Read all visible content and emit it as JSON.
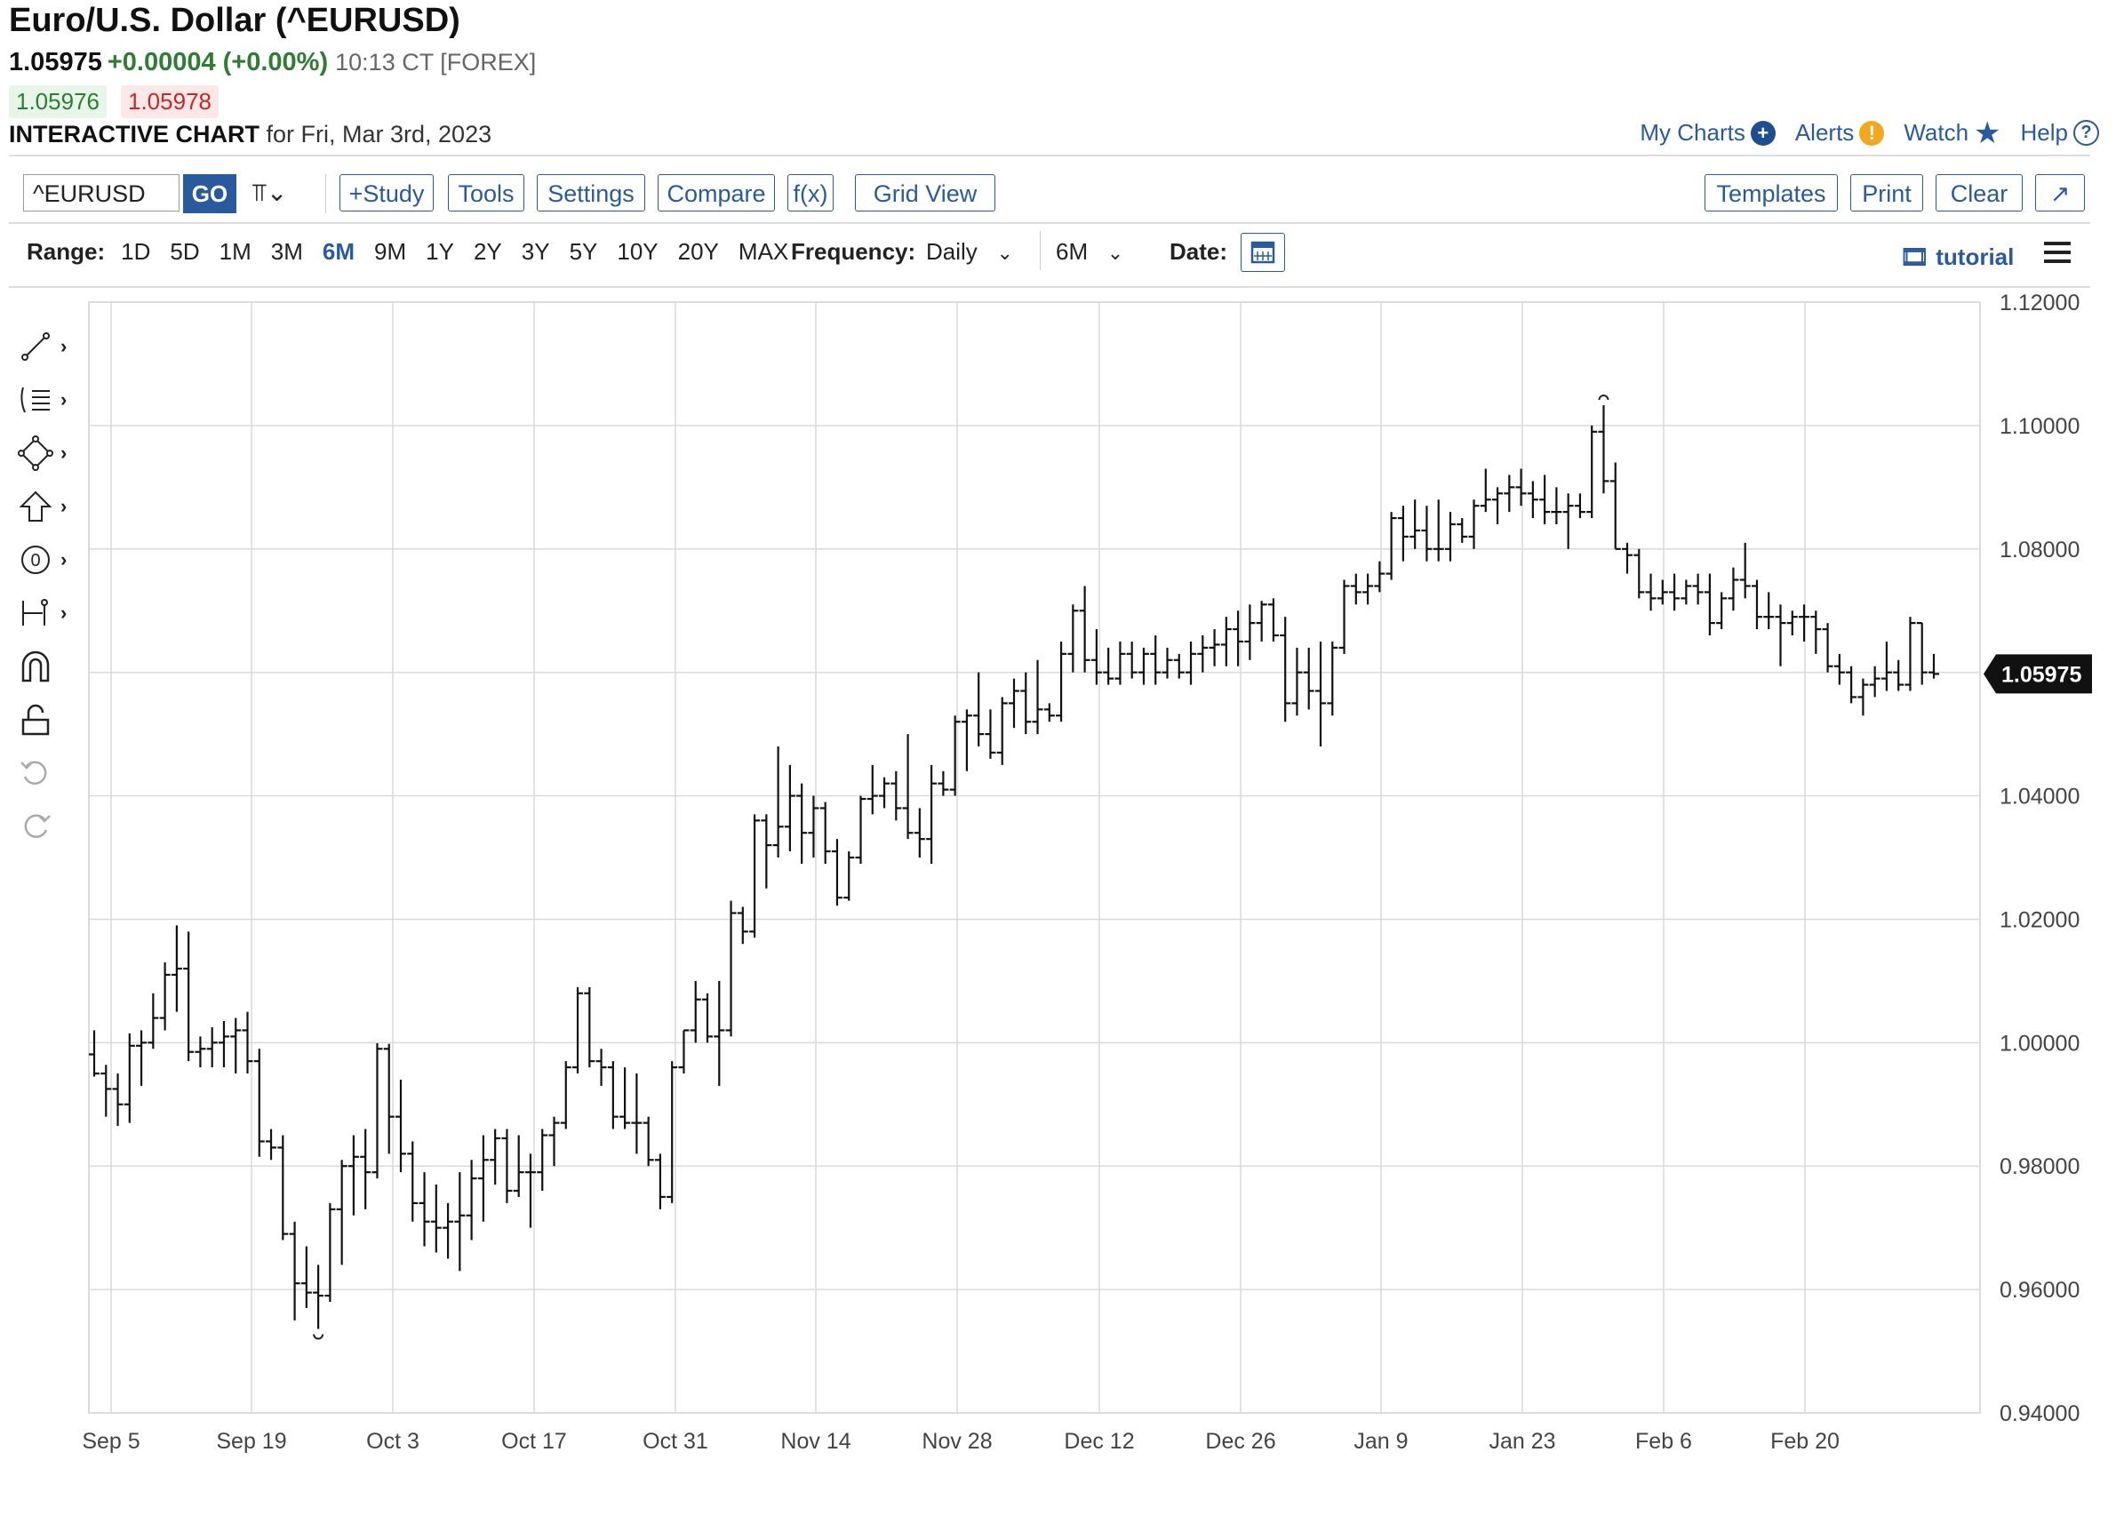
{
  "header": {
    "title": "Euro/U.S. Dollar (^EURUSD)",
    "last": "1.05975",
    "change": "+0.00004 (+0.00%)",
    "time": "10:13 CT [FOREX]",
    "bid": "1.05976",
    "ask": "1.05978",
    "chart_label": "INTERACTIVE CHART",
    "chart_date": "for Fri, Mar 3rd, 2023",
    "links": {
      "my_charts": "My Charts",
      "alerts": "Alerts",
      "watch": "Watch",
      "help": "Help"
    }
  },
  "toolbar": {
    "symbol": "^EURUSD",
    "go": "GO",
    "buttons": [
      "+Study",
      "Tools",
      "Settings",
      "Compare",
      "f(x)",
      "Grid View"
    ],
    "right_buttons": [
      "Templates",
      "Print",
      "Clear",
      "↗"
    ]
  },
  "range_bar": {
    "label": "Range:",
    "options": [
      "1D",
      "5D",
      "1M",
      "3M",
      "6M",
      "9M",
      "1Y",
      "2Y",
      "3Y",
      "5Y",
      "10Y",
      "20Y",
      "MAX"
    ],
    "active": "6M",
    "frequency_label": "Frequency:",
    "frequency": "Daily",
    "period": "6M",
    "date_label": "Date:",
    "tutorial": "tutorial"
  },
  "icons": [
    "line-tool-icon",
    "fib-tool-icon",
    "shape-tool-icon",
    "arrow-tool-icon",
    "label-tool-icon",
    "measure-tool-icon",
    "magnet-icon",
    "lock-icon",
    "undo-icon",
    "redo-icon"
  ],
  "colors": {
    "accent": "#2a5a9e",
    "up": "#2e7d32",
    "down": "#c62828",
    "bars": "#111111",
    "grid": "#d9d9d9"
  },
  "chart_data": {
    "type": "ohlc",
    "ylim": [
      0.94,
      1.12
    ],
    "yticks": [
      "1.12000",
      "1.10000",
      "1.08000",
      "1.06000",
      "1.04000",
      "1.02000",
      "1.00000",
      "0.98000",
      "0.96000",
      "0.94000"
    ],
    "xtick_labels": [
      "Sep 5",
      "Sep 19",
      "Oct 3",
      "Oct 17",
      "Oct 31",
      "Nov 14",
      "Nov 28",
      "Dec 12",
      "Dec 26",
      "Jan 9",
      "Jan 23",
      "Feb 6",
      "Feb 20"
    ],
    "last_price_label": "1.05975",
    "high_marker": "1.1033",
    "low_marker": "0.9536",
    "ohlc": [
      [
        0.9981,
        1.002,
        0.9945,
        0.995
      ],
      [
        0.995,
        0.9964,
        0.988,
        0.9925
      ],
      [
        0.9925,
        0.995,
        0.9865,
        0.99
      ],
      [
        0.99,
        1.0015,
        0.987,
        0.9995
      ],
      [
        0.9995,
        1.002,
        0.993,
        1.0
      ],
      [
        1.0,
        1.008,
        0.999,
        1.004
      ],
      [
        1.004,
        1.013,
        1.002,
        1.011
      ],
      [
        1.011,
        1.019,
        1.005,
        1.012
      ],
      [
        1.012,
        1.018,
        0.997,
        0.9985
      ],
      [
        0.9985,
        1.001,
        0.996,
        0.999
      ],
      [
        0.999,
        1.0025,
        0.996,
        1.0
      ],
      [
        1.0,
        1.0035,
        0.996,
        1.001
      ],
      [
        1.001,
        1.004,
        0.995,
        1.002
      ],
      [
        1.002,
        1.005,
        0.995,
        0.997
      ],
      [
        0.997,
        0.999,
        0.9815,
        0.984
      ],
      [
        0.984,
        0.986,
        0.981,
        0.983
      ],
      [
        0.983,
        0.985,
        0.968,
        0.969
      ],
      [
        0.969,
        0.971,
        0.955,
        0.961
      ],
      [
        0.961,
        0.967,
        0.957,
        0.9595
      ],
      [
        0.9595,
        0.964,
        0.9536,
        0.959
      ],
      [
        0.959,
        0.974,
        0.958,
        0.973
      ],
      [
        0.973,
        0.981,
        0.964,
        0.98
      ],
      [
        0.98,
        0.985,
        0.972,
        0.9815
      ],
      [
        0.9815,
        0.986,
        0.973,
        0.979
      ],
      [
        0.979,
        0.9999,
        0.978,
        0.999
      ],
      [
        0.999,
        0.9998,
        0.982,
        0.988
      ],
      [
        0.988,
        0.994,
        0.979,
        0.982
      ],
      [
        0.982,
        0.984,
        0.971,
        0.974
      ],
      [
        0.974,
        0.979,
        0.967,
        0.971
      ],
      [
        0.971,
        0.977,
        0.966,
        0.97
      ],
      [
        0.97,
        0.974,
        0.965,
        0.971
      ],
      [
        0.971,
        0.979,
        0.963,
        0.972
      ],
      [
        0.972,
        0.981,
        0.968,
        0.978
      ],
      [
        0.978,
        0.985,
        0.971,
        0.981
      ],
      [
        0.981,
        0.986,
        0.977,
        0.9845
      ],
      [
        0.9845,
        0.986,
        0.974,
        0.976
      ],
      [
        0.976,
        0.985,
        0.975,
        0.979
      ],
      [
        0.979,
        0.982,
        0.97,
        0.979
      ],
      [
        0.979,
        0.986,
        0.976,
        0.985
      ],
      [
        0.985,
        0.988,
        0.98,
        0.987
      ],
      [
        0.987,
        0.997,
        0.986,
        0.996
      ],
      [
        0.996,
        1.009,
        0.995,
        1.008
      ],
      [
        1.008,
        1.009,
        0.996,
        0.997
      ],
      [
        0.997,
        0.999,
        0.993,
        0.996
      ],
      [
        0.996,
        0.997,
        0.986,
        0.988
      ],
      [
        0.988,
        0.996,
        0.986,
        0.987
      ],
      [
        0.987,
        0.995,
        0.982,
        0.987
      ],
      [
        0.987,
        0.988,
        0.98,
        0.981
      ],
      [
        0.981,
        0.982,
        0.973,
        0.975
      ],
      [
        0.975,
        0.997,
        0.974,
        0.996
      ],
      [
        0.996,
        1.002,
        0.995,
        1.002
      ],
      [
        1.002,
        1.01,
        1.0,
        1.007
      ],
      [
        1.007,
        1.008,
        1.0,
        1.001
      ],
      [
        1.001,
        1.01,
        0.993,
        1.002
      ],
      [
        1.002,
        1.023,
        1.001,
        1.021
      ],
      [
        1.021,
        1.022,
        1.016,
        1.018
      ],
      [
        1.018,
        1.037,
        1.017,
        1.036
      ],
      [
        1.036,
        1.037,
        1.025,
        1.032
      ],
      [
        1.032,
        1.048,
        1.03,
        1.035
      ],
      [
        1.035,
        1.045,
        1.031,
        1.04
      ],
      [
        1.04,
        1.042,
        1.029,
        1.034
      ],
      [
        1.034,
        1.04,
        1.03,
        1.038
      ],
      [
        1.038,
        1.039,
        1.029,
        1.031
      ],
      [
        1.031,
        1.033,
        1.0222,
        1.0235
      ],
      [
        1.0235,
        1.031,
        1.023,
        1.03
      ],
      [
        1.03,
        1.04,
        1.029,
        1.0395
      ],
      [
        1.0395,
        1.045,
        1.037,
        1.04
      ],
      [
        1.04,
        1.043,
        1.038,
        1.042
      ],
      [
        1.042,
        1.044,
        1.036,
        1.038
      ],
      [
        1.038,
        1.05,
        1.033,
        1.034
      ],
      [
        1.034,
        1.038,
        1.03,
        1.033
      ],
      [
        1.033,
        1.045,
        1.029,
        1.042
      ],
      [
        1.042,
        1.044,
        1.04,
        1.041
      ],
      [
        1.041,
        1.053,
        1.04,
        1.052
      ],
      [
        1.052,
        1.054,
        1.044,
        1.053
      ],
      [
        1.053,
        1.06,
        1.048,
        1.05
      ],
      [
        1.05,
        1.054,
        1.046,
        1.047
      ],
      [
        1.047,
        1.056,
        1.045,
        1.055
      ],
      [
        1.055,
        1.059,
        1.051,
        1.057
      ],
      [
        1.057,
        1.06,
        1.05,
        1.052
      ],
      [
        1.052,
        1.062,
        1.05,
        1.054
      ],
      [
        1.054,
        1.055,
        1.052,
        1.053
      ],
      [
        1.053,
        1.065,
        1.052,
        1.063
      ],
      [
        1.063,
        1.071,
        1.06,
        1.07
      ],
      [
        1.07,
        1.074,
        1.06,
        1.062
      ],
      [
        1.062,
        1.067,
        1.058,
        1.06
      ],
      [
        1.06,
        1.064,
        1.058,
        1.059
      ],
      [
        1.059,
        1.065,
        1.058,
        1.063
      ],
      [
        1.063,
        1.065,
        1.059,
        1.06
      ],
      [
        1.06,
        1.064,
        1.058,
        1.063
      ],
      [
        1.063,
        1.066,
        1.058,
        1.06
      ],
      [
        1.06,
        1.064,
        1.059,
        1.062
      ],
      [
        1.062,
        1.063,
        1.059,
        1.06
      ],
      [
        1.06,
        1.065,
        1.058,
        1.063
      ],
      [
        1.063,
        1.066,
        1.06,
        1.064
      ],
      [
        1.064,
        1.067,
        1.061,
        1.0645
      ],
      [
        1.0645,
        1.069,
        1.061,
        1.067
      ],
      [
        1.067,
        1.07,
        1.061,
        1.065
      ],
      [
        1.065,
        1.071,
        1.062,
        1.068
      ],
      [
        1.068,
        1.0716,
        1.065,
        1.071
      ],
      [
        1.071,
        1.072,
        1.065,
        1.066
      ],
      [
        1.066,
        1.069,
        1.052,
        1.055
      ],
      [
        1.055,
        1.064,
        1.053,
        1.06
      ],
      [
        1.06,
        1.064,
        1.054,
        1.057
      ],
      [
        1.057,
        1.065,
        1.048,
        1.055
      ],
      [
        1.055,
        1.065,
        1.053,
        1.064
      ],
      [
        1.064,
        1.075,
        1.063,
        1.074
      ],
      [
        1.074,
        1.076,
        1.071,
        1.073
      ],
      [
        1.073,
        1.076,
        1.071,
        1.074
      ],
      [
        1.074,
        1.078,
        1.073,
        1.076
      ],
      [
        1.076,
        1.086,
        1.075,
        1.085
      ],
      [
        1.085,
        1.087,
        1.078,
        1.082
      ],
      [
        1.082,
        1.088,
        1.08,
        1.083
      ],
      [
        1.083,
        1.087,
        1.078,
        1.08
      ],
      [
        1.08,
        1.088,
        1.078,
        1.08
      ],
      [
        1.08,
        1.086,
        1.078,
        1.084
      ],
      [
        1.084,
        1.085,
        1.081,
        1.082
      ],
      [
        1.082,
        1.088,
        1.08,
        1.087
      ],
      [
        1.087,
        1.093,
        1.086,
        1.088
      ],
      [
        1.088,
        1.09,
        1.084,
        1.089
      ],
      [
        1.089,
        1.092,
        1.086,
        1.09
      ],
      [
        1.09,
        1.093,
        1.087,
        1.089
      ],
      [
        1.089,
        1.091,
        1.085,
        1.088
      ],
      [
        1.088,
        1.092,
        1.084,
        1.086
      ],
      [
        1.086,
        1.09,
        1.084,
        1.086
      ],
      [
        1.086,
        1.089,
        1.08,
        1.087
      ],
      [
        1.087,
        1.089,
        1.085,
        1.086
      ],
      [
        1.086,
        1.1,
        1.085,
        1.099
      ],
      [
        1.099,
        1.1033,
        1.089,
        1.091
      ],
      [
        1.091,
        1.094,
        1.08,
        1.08
      ],
      [
        1.08,
        1.081,
        1.076,
        1.079
      ],
      [
        1.079,
        1.08,
        1.072,
        1.073
      ],
      [
        1.073,
        1.076,
        1.07,
        1.072
      ],
      [
        1.072,
        1.075,
        1.071,
        1.073
      ],
      [
        1.073,
        1.076,
        1.07,
        1.072
      ],
      [
        1.072,
        1.075,
        1.071,
        1.074
      ],
      [
        1.074,
        1.076,
        1.071,
        1.073
      ],
      [
        1.073,
        1.076,
        1.066,
        1.068
      ],
      [
        1.068,
        1.073,
        1.067,
        1.072
      ],
      [
        1.072,
        1.077,
        1.07,
        1.075
      ],
      [
        1.075,
        1.081,
        1.072,
        1.074
      ],
      [
        1.074,
        1.075,
        1.067,
        1.069
      ],
      [
        1.069,
        1.073,
        1.067,
        1.069
      ],
      [
        1.069,
        1.071,
        1.061,
        1.068
      ],
      [
        1.068,
        1.07,
        1.066,
        1.069
      ],
      [
        1.069,
        1.071,
        1.065,
        1.069
      ],
      [
        1.069,
        1.07,
        1.063,
        1.067
      ],
      [
        1.067,
        1.068,
        1.06,
        1.061
      ],
      [
        1.061,
        1.063,
        1.058,
        1.06
      ],
      [
        1.06,
        1.061,
        1.055,
        1.056
      ],
      [
        1.056,
        1.059,
        1.053,
        1.058
      ],
      [
        1.058,
        1.061,
        1.056,
        1.059
      ],
      [
        1.059,
        1.065,
        1.057,
        1.06
      ],
      [
        1.06,
        1.062,
        1.057,
        1.058
      ],
      [
        1.058,
        1.069,
        1.057,
        1.068
      ],
      [
        1.068,
        1.068,
        1.058,
        1.06
      ],
      [
        1.06,
        1.063,
        1.059,
        1.05975
      ]
    ]
  }
}
